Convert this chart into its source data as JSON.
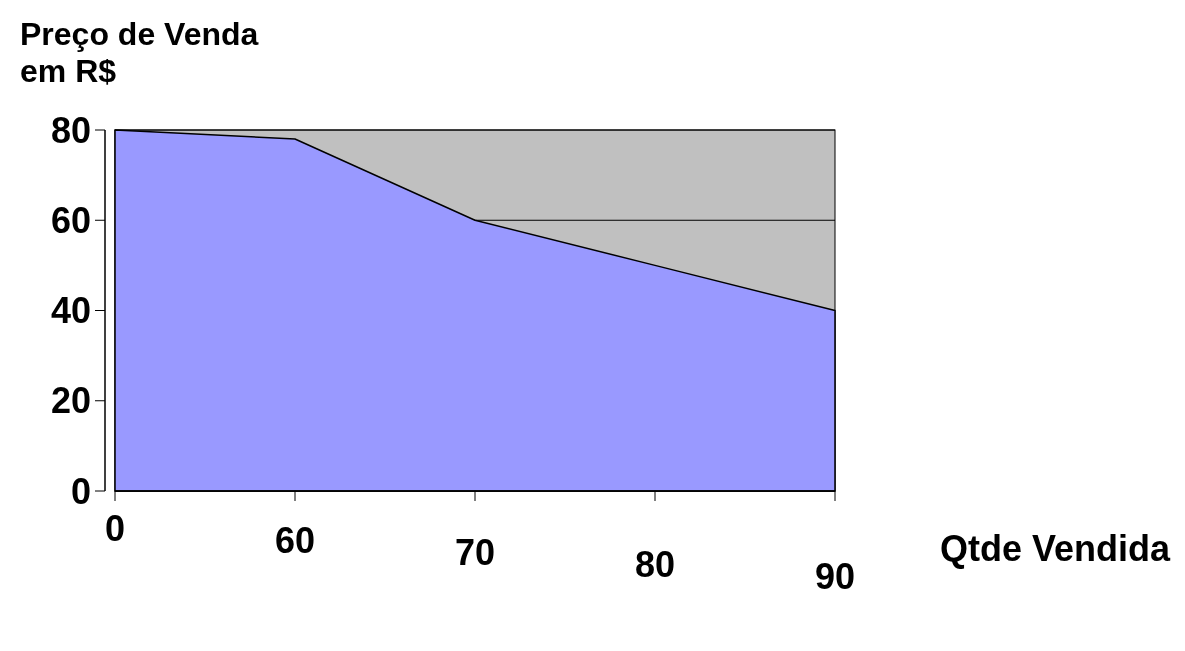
{
  "chart_data": {
    "type": "area",
    "ylabel": "Preço de Venda em R$",
    "xlabel": "Qtde Vendida",
    "categories": [
      "0",
      "60",
      "70",
      "80",
      "90"
    ],
    "series": [
      {
        "color": "#9999ff",
        "values": [
          80,
          78,
          60,
          50,
          40
        ]
      }
    ],
    "ylim": [
      0,
      80
    ],
    "yticks": [
      0,
      20,
      40,
      60,
      80
    ],
    "grid": "y"
  }
}
